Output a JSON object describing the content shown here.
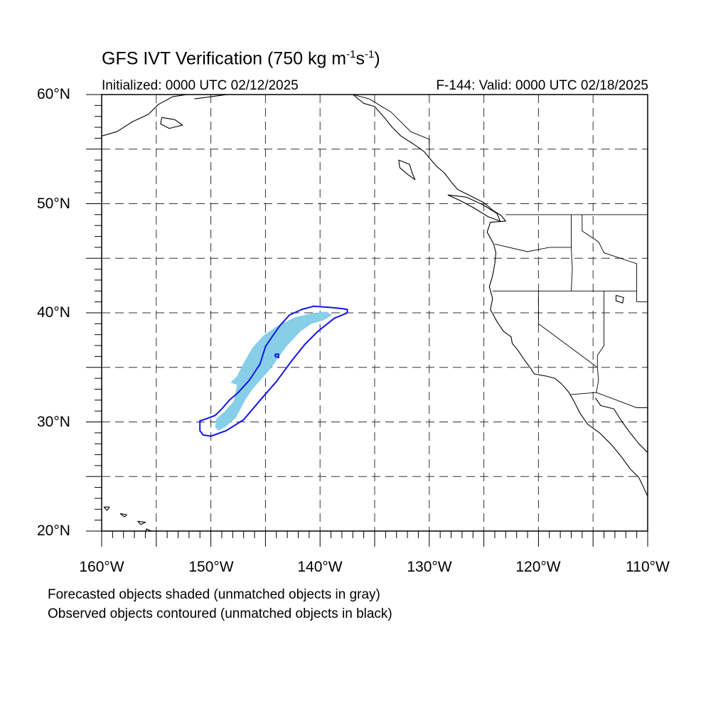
{
  "title": {
    "prefix": "GFS IVT Verification (750 kg m",
    "sup1": "-1",
    "middle": "s",
    "sup2": "-1",
    "suffix": ")"
  },
  "initialized": "Initialized: 0000 UTC 02/12/2025",
  "valid": "F-144: Valid: 0000 UTC 02/18/2025",
  "lat_labels": [
    "60°N",
    "50°N",
    "40°N",
    "30°N",
    "20°N"
  ],
  "lon_labels": [
    "160°W",
    "150°W",
    "140°W",
    "130°W",
    "120°W",
    "110°W"
  ],
  "footnotes": {
    "line1": "Forecasted objects shaded (unmatched objects in gray)",
    "line2": "Observed objects contoured (unmatched objects in black)"
  },
  "map": {
    "lat_range": [
      20,
      60
    ],
    "lon_range": [
      -160,
      -110
    ],
    "gridline_interval_deg": 5,
    "gridline_style": "dashed"
  },
  "colors": {
    "forecast_shading": "#87CEE8",
    "observed_contour": "#1414E6",
    "coastline": "#000000",
    "grid": "#333333"
  },
  "forecast_object": {
    "label": "Forecasted objects shaded",
    "polygon_lonlat": [
      [
        -149.3,
        29.2
      ],
      [
        -148.6,
        29.6
      ],
      [
        -147.7,
        30.4
      ],
      [
        -146.8,
        32.1
      ],
      [
        -146.2,
        33.0
      ],
      [
        -144.6,
        34.8
      ],
      [
        -143.1,
        36.9
      ],
      [
        -141.8,
        38.3
      ],
      [
        -140.8,
        39.0
      ],
      [
        -139.7,
        39.3
      ],
      [
        -138.9,
        39.8
      ],
      [
        -139.4,
        40.1
      ],
      [
        -140.5,
        40.0
      ],
      [
        -142.3,
        39.6
      ],
      [
        -143.9,
        38.8
      ],
      [
        -145.2,
        37.9
      ],
      [
        -146.2,
        36.8
      ],
      [
        -147.0,
        35.4
      ],
      [
        -147.6,
        34.2
      ],
      [
        -148.2,
        33.6
      ],
      [
        -147.6,
        33.4
      ],
      [
        -147.9,
        31.9
      ],
      [
        -148.7,
        31.0
      ],
      [
        -149.5,
        30.3
      ],
      [
        -149.6,
        29.5
      ]
    ]
  },
  "observed_object": {
    "label": "Observed objects contoured",
    "polygon_lonlat": [
      [
        -150.0,
        28.7
      ],
      [
        -148.6,
        29.2
      ],
      [
        -147.0,
        30.2
      ],
      [
        -145.4,
        32.1
      ],
      [
        -144.0,
        33.7
      ],
      [
        -142.6,
        35.6
      ],
      [
        -141.4,
        37.1
      ],
      [
        -140.2,
        38.3
      ],
      [
        -138.7,
        39.5
      ],
      [
        -137.5,
        40.0
      ],
      [
        -137.5,
        40.3
      ],
      [
        -138.1,
        40.4
      ],
      [
        -139.2,
        40.5
      ],
      [
        -140.6,
        40.6
      ],
      [
        -141.7,
        40.3
      ],
      [
        -142.8,
        39.8
      ],
      [
        -143.7,
        38.8
      ],
      [
        -144.4,
        37.8
      ],
      [
        -145.0,
        36.9
      ],
      [
        -145.5,
        35.3
      ],
      [
        -146.1,
        34.4
      ],
      [
        -146.5,
        33.8
      ],
      [
        -147.5,
        32.7
      ],
      [
        -148.3,
        32.0
      ],
      [
        -149.0,
        31.2
      ],
      [
        -149.6,
        30.6
      ],
      [
        -150.4,
        30.3
      ],
      [
        -151.0,
        30.1
      ],
      [
        -151.0,
        29.2
      ],
      [
        -150.7,
        28.8
      ]
    ],
    "inner_ring_lonlat": [
      [
        -144.1,
        36.0
      ],
      [
        -143.8,
        35.9
      ],
      [
        -143.8,
        36.2
      ],
      [
        -144.1,
        36.2
      ]
    ]
  },
  "coastlines": {
    "north_america_west": [
      [
        -137.0,
        60.0
      ],
      [
        -136.0,
        59.2
      ],
      [
        -135.0,
        58.9
      ],
      [
        -134.2,
        58.0
      ],
      [
        -133.4,
        57.0
      ],
      [
        -132.6,
        56.2
      ],
      [
        -131.5,
        55.5
      ],
      [
        -130.5,
        54.8
      ],
      [
        -130.0,
        54.2
      ],
      [
        -129.4,
        53.5
      ],
      [
        -128.6,
        52.8
      ],
      [
        -128.0,
        52.0
      ],
      [
        -127.4,
        51.3
      ],
      [
        -126.2,
        50.7
      ],
      [
        -125.0,
        50.1
      ],
      [
        -124.2,
        49.4
      ],
      [
        -123.4,
        48.9
      ],
      [
        -123.0,
        48.4
      ],
      [
        -124.4,
        48.3
      ],
      [
        -124.7,
        47.4
      ],
      [
        -124.1,
        46.3
      ],
      [
        -123.9,
        45.5
      ],
      [
        -124.0,
        44.5
      ],
      [
        -124.2,
        43.4
      ],
      [
        -124.5,
        42.4
      ],
      [
        -124.2,
        41.3
      ],
      [
        -124.4,
        40.3
      ],
      [
        -123.8,
        39.2
      ],
      [
        -123.2,
        38.3
      ],
      [
        -122.5,
        37.8
      ],
      [
        -122.4,
        37.2
      ],
      [
        -121.9,
        36.6
      ],
      [
        -121.3,
        35.7
      ],
      [
        -120.7,
        34.9
      ],
      [
        -120.4,
        34.4
      ],
      [
        -119.3,
        34.2
      ],
      [
        -118.5,
        34.0
      ],
      [
        -117.9,
        33.5
      ],
      [
        -117.2,
        32.7
      ],
      [
        -116.7,
        31.8
      ],
      [
        -116.2,
        30.8
      ],
      [
        -115.5,
        29.8
      ],
      [
        -114.4,
        29.0
      ],
      [
        -113.3,
        27.9
      ],
      [
        -112.4,
        26.8
      ],
      [
        -111.6,
        25.7
      ],
      [
        -110.8,
        24.9
      ],
      [
        -110.0,
        23.2
      ]
    ],
    "mexico_mainland_gulf": [
      [
        -114.8,
        32.2
      ],
      [
        -114.3,
        31.5
      ],
      [
        -113.1,
        31.2
      ],
      [
        -112.4,
        30.1
      ],
      [
        -111.6,
        29.0
      ],
      [
        -110.8,
        28.0
      ],
      [
        -110.0,
        27.2
      ]
    ],
    "alaska_south": [
      [
        -160.0,
        56.2
      ],
      [
        -158.6,
        56.6
      ],
      [
        -157.2,
        57.5
      ],
      [
        -155.7,
        58.2
      ],
      [
        -154.8,
        59.1
      ],
      [
        -153.5,
        59.8
      ],
      [
        -152.2,
        60.0
      ]
    ],
    "kodiak": [
      [
        -154.5,
        57.9
      ],
      [
        -153.3,
        57.7
      ],
      [
        -152.6,
        57.2
      ],
      [
        -153.8,
        56.9
      ],
      [
        -154.6,
        57.3
      ],
      [
        -154.5,
        57.9
      ]
    ],
    "gulf_alaska_north": [
      [
        -151.5,
        59.6
      ],
      [
        -150.0,
        59.8
      ],
      [
        -148.5,
        60.0
      ]
    ],
    "haida_gwaii": [
      [
        -132.8,
        54.0
      ],
      [
        -131.8,
        53.6
      ],
      [
        -131.6,
        52.9
      ],
      [
        -131.3,
        52.2
      ],
      [
        -132.0,
        52.7
      ],
      [
        -132.7,
        53.3
      ],
      [
        -132.8,
        54.0
      ]
    ],
    "vancouver_island": [
      [
        -128.3,
        50.8
      ],
      [
        -127.2,
        50.3
      ],
      [
        -125.9,
        49.6
      ],
      [
        -124.6,
        48.8
      ],
      [
        -123.5,
        48.4
      ],
      [
        -123.8,
        49.1
      ],
      [
        -125.1,
        49.9
      ],
      [
        -126.6,
        50.6
      ],
      [
        -128.3,
        50.8
      ]
    ],
    "hawaii_big_island": [
      [
        -155.9,
        20.2
      ],
      [
        -155.0,
        19.8
      ],
      [
        -154.9,
        19.5
      ],
      [
        -155.6,
        19.0
      ],
      [
        -156.0,
        19.6
      ],
      [
        -155.9,
        20.2
      ]
    ],
    "maui": [
      [
        -156.7,
        20.9
      ],
      [
        -156.0,
        20.8
      ],
      [
        -156.4,
        20.6
      ],
      [
        -156.7,
        20.9
      ]
    ],
    "oahu": [
      [
        -158.3,
        21.6
      ],
      [
        -157.7,
        21.5
      ],
      [
        -157.9,
        21.3
      ],
      [
        -158.3,
        21.6
      ]
    ],
    "kauai": [
      [
        -159.8,
        22.2
      ],
      [
        -159.3,
        22.2
      ],
      [
        -159.5,
        21.9
      ],
      [
        -159.8,
        22.2
      ]
    ],
    "great_salt_lake": [
      [
        -112.9,
        41.6
      ],
      [
        -112.2,
        41.4
      ],
      [
        -112.3,
        40.9
      ],
      [
        -112.9,
        41.1
      ],
      [
        -112.9,
        41.6
      ]
    ]
  },
  "borders": {
    "us_canada": [
      [
        -123.0,
        49.0
      ],
      [
        -110.0,
        49.0
      ]
    ],
    "alaska_bc": [
      [
        -137.0,
        60.0
      ],
      [
        -135.5,
        59.6
      ],
      [
        -133.5,
        58.4
      ],
      [
        -131.7,
        56.6
      ],
      [
        -130.0,
        55.9
      ],
      [
        -130.0,
        54.9
      ]
    ],
    "wa_or": [
      [
        -124.0,
        46.3
      ],
      [
        -121.0,
        45.6
      ],
      [
        -119.0,
        46.0
      ],
      [
        -117.0,
        46.0
      ],
      [
        -117.0,
        49.0
      ]
    ],
    "or_ca_nv_id": [
      [
        -124.2,
        42.0
      ],
      [
        -111.0,
        42.0
      ]
    ],
    "or_id": [
      [
        -117.0,
        46.0
      ],
      [
        -116.9,
        44.0
      ],
      [
        -117.0,
        42.0
      ]
    ],
    "ca_nv": [
      [
        -120.0,
        42.0
      ],
      [
        -120.0,
        39.0
      ],
      [
        -114.6,
        35.0
      ]
    ],
    "nv_ut_az": [
      [
        -114.0,
        42.0
      ],
      [
        -114.0,
        37.0
      ],
      [
        -114.6,
        36.1
      ],
      [
        -114.6,
        35.0
      ]
    ],
    "id_mt_wy": [
      [
        -116.0,
        49.0
      ],
      [
        -116.0,
        47.5
      ],
      [
        -114.5,
        46.5
      ],
      [
        -114.0,
        45.5
      ],
      [
        -111.0,
        44.5
      ],
      [
        -111.0,
        41.0
      ]
    ],
    "ut_wy": [
      [
        -111.0,
        41.0
      ],
      [
        -110.0,
        41.0
      ]
    ],
    "us_mexico": [
      [
        -117.1,
        32.5
      ],
      [
        -114.7,
        32.7
      ],
      [
        -111.0,
        31.3
      ],
      [
        -110.0,
        31.3
      ]
    ],
    "ca_az": [
      [
        -114.6,
        35.0
      ],
      [
        -114.5,
        33.8
      ],
      [
        -114.7,
        32.7
      ]
    ]
  }
}
